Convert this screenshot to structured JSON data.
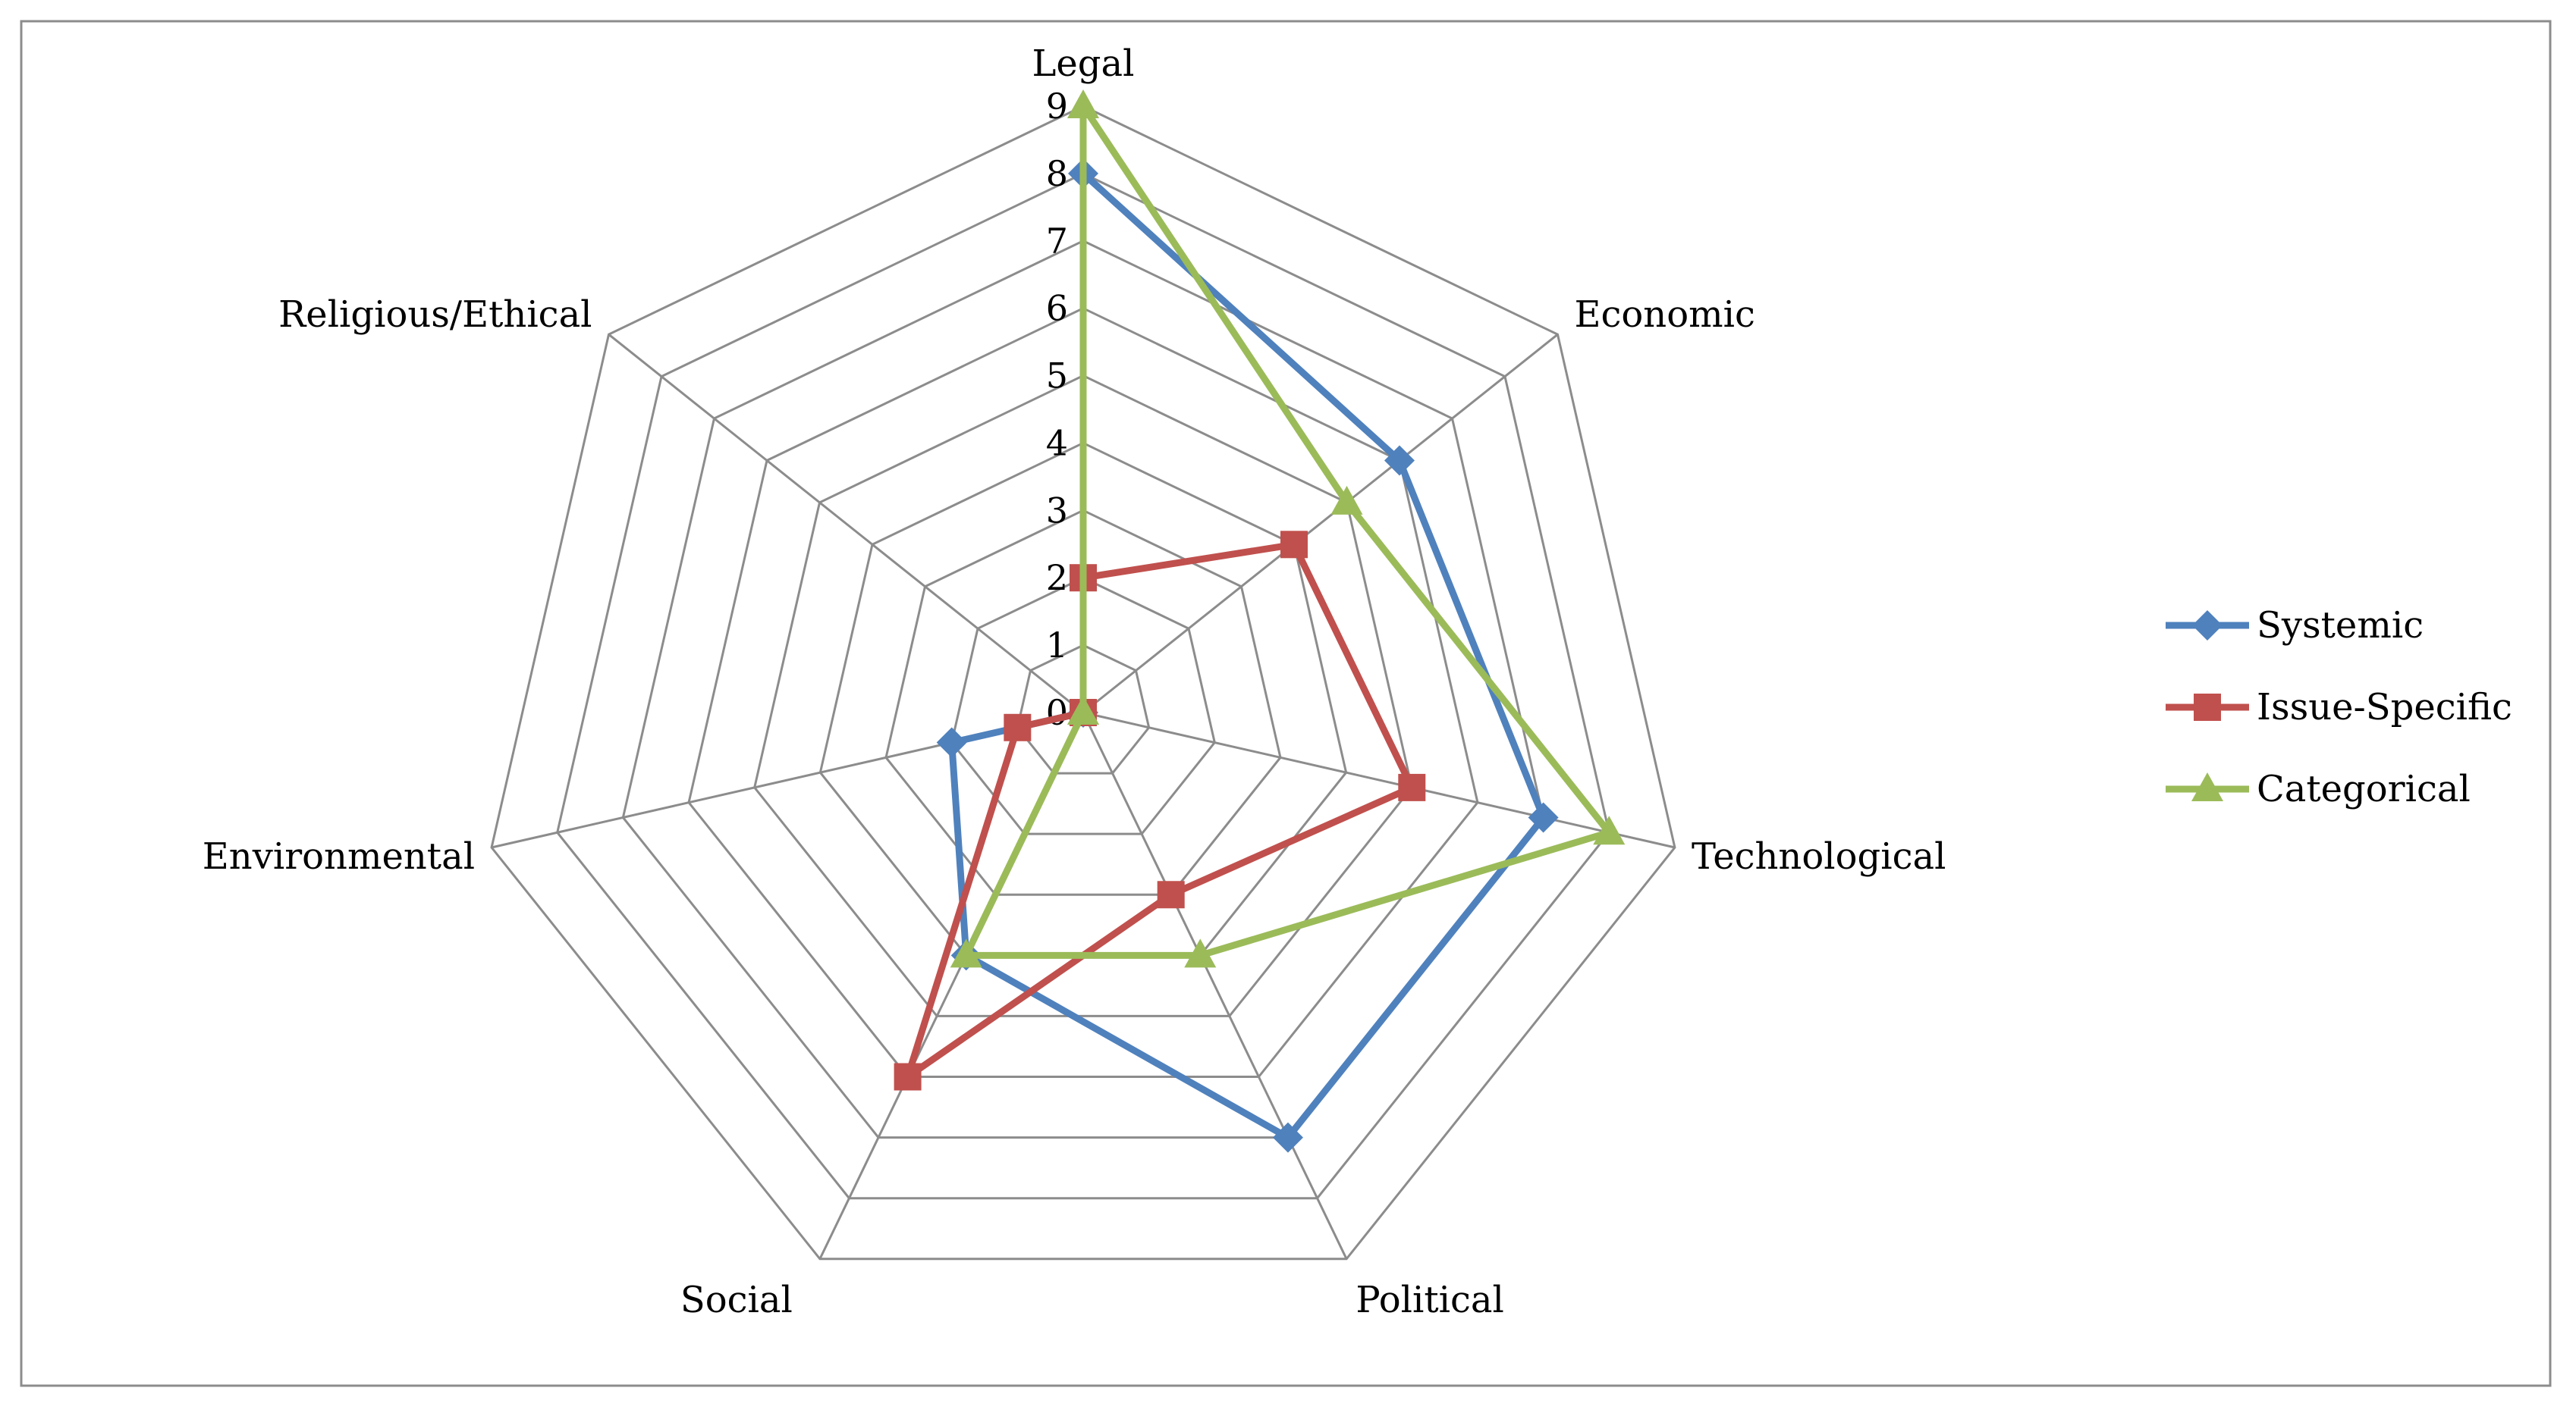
{
  "chart_data": {
    "type": "radar",
    "categories": [
      "Legal",
      "Economic",
      "Technological",
      "Political",
      "Social",
      "Environmental",
      "Religious/Ethical"
    ],
    "rlim": [
      0,
      9
    ],
    "ticks": [
      "0",
      "1",
      "2",
      "3",
      "4",
      "5",
      "6",
      "7",
      "8",
      "9"
    ],
    "series": [
      {
        "name": "Systemic",
        "color": "#4F81BD",
        "marker": "diamond",
        "values": [
          8,
          6,
          7,
          7,
          4,
          2,
          0
        ]
      },
      {
        "name": "Issue-Specific",
        "color": "#C0504D",
        "marker": "square",
        "values": [
          2,
          4,
          5,
          3,
          6,
          1,
          0
        ]
      },
      {
        "name": "Categorical",
        "color": "#9BBB59",
        "marker": "triangle",
        "values": [
          9,
          5,
          8,
          4,
          4,
          0,
          0
        ]
      }
    ],
    "grid": true,
    "legend_position": "right"
  }
}
